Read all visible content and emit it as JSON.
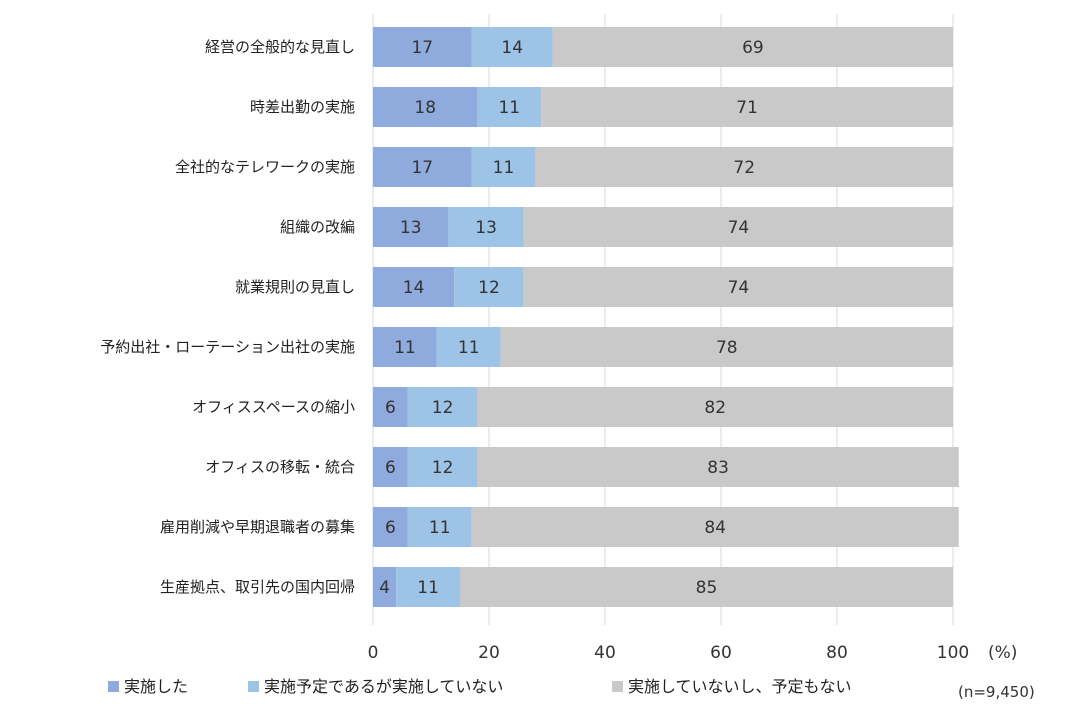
{
  "chart_data": {
    "type": "bar",
    "orientation": "horizontal",
    "stacked": true,
    "categories": [
      "経営の全般的な見直し",
      "時差出勤の実施",
      "全社的なテレワークの実施",
      "組織の改編",
      "就業規則の見直し",
      "予約出社・ローテーション出社の実施",
      "オフィススペースの縮小",
      "オフィスの移転・統合",
      "雇用削減や早期退職者の募集",
      "生産拠点、取引先の国内回帰"
    ],
    "series": [
      {
        "name": "実施した",
        "color": "#8faadc",
        "values": [
          17,
          18,
          17,
          13,
          14,
          11,
          6,
          6,
          6,
          4
        ]
      },
      {
        "name": "実施予定であるが実施していない",
        "color": "#9dc3e6",
        "values": [
          14,
          11,
          11,
          13,
          12,
          11,
          12,
          12,
          11,
          11
        ]
      },
      {
        "name": "実施していないし、予定もない",
        "color": "#c9c9c9",
        "values": [
          69,
          71,
          72,
          74,
          74,
          78,
          82,
          83,
          84,
          85
        ]
      }
    ],
    "xlim": [
      0,
      100
    ],
    "xticks": [
      0,
      20,
      40,
      60,
      80,
      100
    ],
    "x_unit_label": "(%)",
    "sample_note": "(n=9,450)",
    "grid": true,
    "legend_position": "bottom"
  }
}
